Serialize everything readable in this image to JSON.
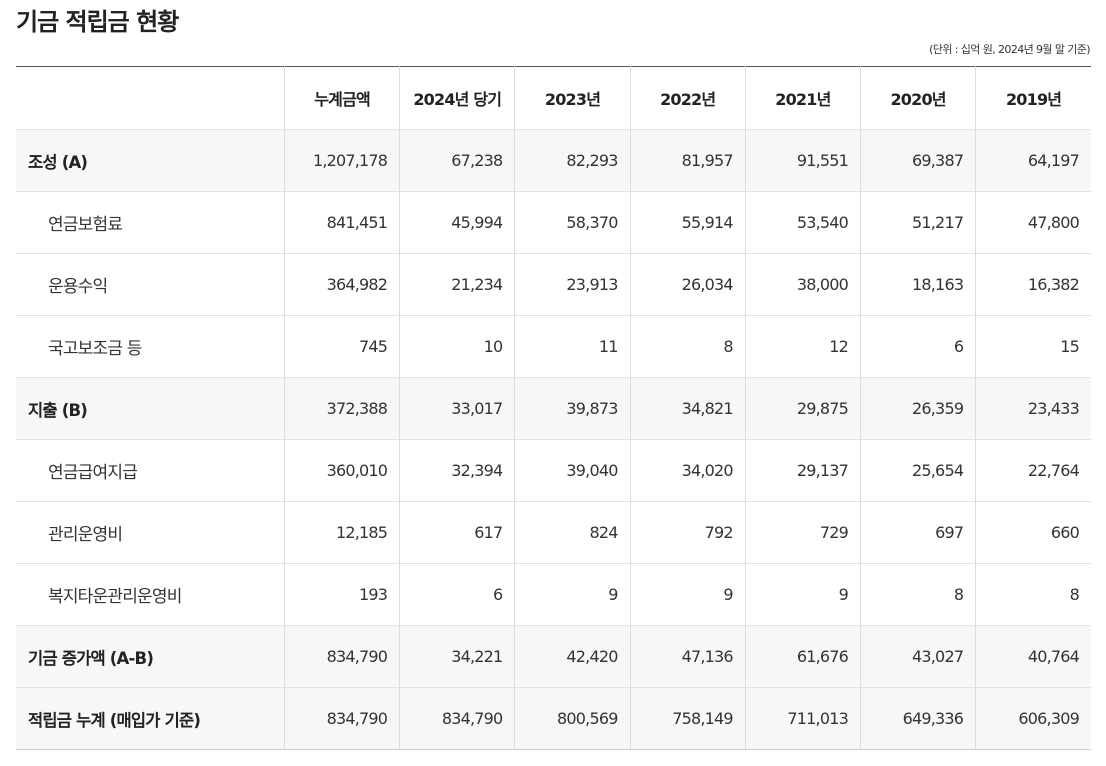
{
  "page": {
    "title": "기금 적립금 현황",
    "unit_note": "(단위 : 십억 원, 2024년 9월 말 기준)"
  },
  "table": {
    "headers": [
      "",
      "누계금액",
      "2024년 당기",
      "2023년",
      "2022년",
      "2021년",
      "2020년",
      "2019년"
    ],
    "rows": [
      {
        "label": "조성 (A)",
        "group": true,
        "values": [
          "1,207,178",
          "67,238",
          "82,293",
          "81,957",
          "91,551",
          "69,387",
          "64,197"
        ]
      },
      {
        "label": "연금보험료",
        "group": false,
        "values": [
          "841,451",
          "45,994",
          "58,370",
          "55,914",
          "53,540",
          "51,217",
          "47,800"
        ]
      },
      {
        "label": "운용수익",
        "group": false,
        "values": [
          "364,982",
          "21,234",
          "23,913",
          "26,034",
          "38,000",
          "18,163",
          "16,382"
        ]
      },
      {
        "label": "국고보조금 등",
        "group": false,
        "values": [
          "745",
          "10",
          "11",
          "8",
          "12",
          "6",
          "15"
        ]
      },
      {
        "label": "지출 (B)",
        "group": true,
        "values": [
          "372,388",
          "33,017",
          "39,873",
          "34,821",
          "29,875",
          "26,359",
          "23,433"
        ]
      },
      {
        "label": "연금급여지급",
        "group": false,
        "values": [
          "360,010",
          "32,394",
          "39,040",
          "34,020",
          "29,137",
          "25,654",
          "22,764"
        ]
      },
      {
        "label": "관리운영비",
        "group": false,
        "values": [
          "12,185",
          "617",
          "824",
          "792",
          "729",
          "697",
          "660"
        ]
      },
      {
        "label": "복지타운관리운영비",
        "group": false,
        "values": [
          "193",
          "6",
          "9",
          "9",
          "9",
          "8",
          "8"
        ]
      },
      {
        "label": "기금 증가액 (A-B)",
        "group": true,
        "values": [
          "834,790",
          "34,221",
          "42,420",
          "47,136",
          "61,676",
          "43,027",
          "40,764"
        ]
      },
      {
        "label": "적립금 누계 (매입가 기준)",
        "group": true,
        "values": [
          "834,790",
          "834,790",
          "800,569",
          "758,149",
          "711,013",
          "649,336",
          "606,309"
        ]
      }
    ]
  },
  "colors": {
    "group_row_bg": "#f7f7f7",
    "table_top_border": "#555555",
    "row_divider": "#e2e2e2"
  }
}
